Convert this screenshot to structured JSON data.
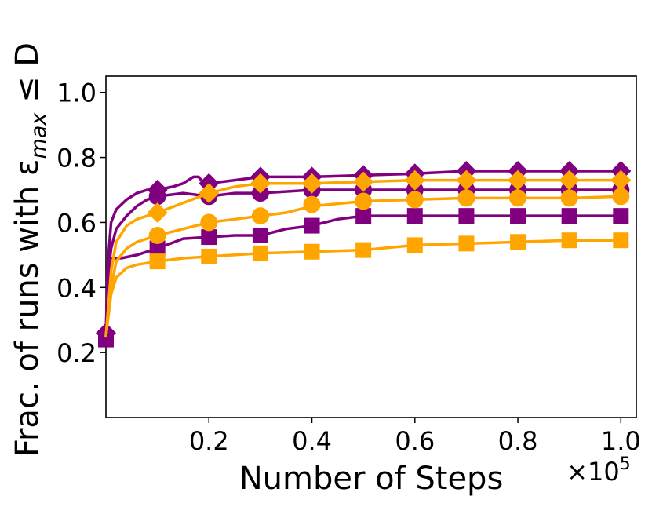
{
  "chart_data": {
    "type": "line",
    "xlabel": "Number of Steps",
    "ylabel_parts": {
      "prefix": "Frac. of runs with ε",
      "subscript": "max",
      "suffix": " ≤ D"
    },
    "x_multiplier": {
      "base": "×10",
      "exponent": "5"
    },
    "xlim": [
      0.0,
      1.03
    ],
    "ylim": [
      0.0,
      1.05
    ],
    "x_ticks": [
      {
        "value": 0.2,
        "label": "0.2"
      },
      {
        "value": 0.4,
        "label": "0.4"
      },
      {
        "value": 0.6,
        "label": "0.6"
      },
      {
        "value": 0.8,
        "label": "0.8"
      },
      {
        "value": 1.0,
        "label": "1.0"
      }
    ],
    "y_ticks": [
      {
        "value": 0.2,
        "label": "0.2"
      },
      {
        "value": 0.4,
        "label": "0.4"
      },
      {
        "value": 0.6,
        "label": "0.6"
      },
      {
        "value": 0.8,
        "label": "0.8"
      },
      {
        "value": 1.0,
        "label": "1.0"
      }
    ],
    "grid": false,
    "series": [
      {
        "color": "#800080",
        "marker": "diamond",
        "points": [
          [
            0.0,
            0.26
          ],
          [
            0.005,
            0.5
          ],
          [
            0.01,
            0.6
          ],
          [
            0.02,
            0.64
          ],
          [
            0.04,
            0.67
          ],
          [
            0.06,
            0.69
          ],
          [
            0.08,
            0.7
          ],
          [
            0.1,
            0.7
          ],
          [
            0.13,
            0.71
          ],
          [
            0.15,
            0.72
          ],
          [
            0.17,
            0.74
          ],
          [
            0.18,
            0.74
          ],
          [
            0.19,
            0.72
          ],
          [
            0.2,
            0.72
          ],
          [
            0.25,
            0.73
          ],
          [
            0.3,
            0.74
          ],
          [
            0.4,
            0.74
          ],
          [
            0.5,
            0.745
          ],
          [
            0.6,
            0.75
          ],
          [
            0.7,
            0.758
          ],
          [
            0.8,
            0.758
          ],
          [
            0.9,
            0.758
          ],
          [
            1.0,
            0.758
          ]
        ],
        "marker_points": [
          [
            0.0,
            0.26
          ],
          [
            0.1,
            0.7
          ],
          [
            0.2,
            0.72
          ],
          [
            0.3,
            0.74
          ],
          [
            0.4,
            0.74
          ],
          [
            0.5,
            0.745
          ],
          [
            0.6,
            0.75
          ],
          [
            0.7,
            0.758
          ],
          [
            0.8,
            0.758
          ],
          [
            0.9,
            0.758
          ],
          [
            1.0,
            0.758
          ]
        ]
      },
      {
        "color": "#800080",
        "marker": "circle",
        "points": [
          [
            0.0,
            0.25
          ],
          [
            0.005,
            0.45
          ],
          [
            0.01,
            0.52
          ],
          [
            0.02,
            0.58
          ],
          [
            0.04,
            0.62
          ],
          [
            0.06,
            0.65
          ],
          [
            0.08,
            0.67
          ],
          [
            0.1,
            0.68
          ],
          [
            0.15,
            0.69
          ],
          [
            0.2,
            0.68
          ],
          [
            0.25,
            0.69
          ],
          [
            0.3,
            0.69
          ],
          [
            0.4,
            0.7
          ],
          [
            0.5,
            0.7
          ],
          [
            0.6,
            0.7
          ],
          [
            0.7,
            0.7
          ],
          [
            0.8,
            0.7
          ],
          [
            0.9,
            0.7
          ],
          [
            1.0,
            0.7
          ]
        ],
        "marker_points": [
          [
            0.1,
            0.68
          ],
          [
            0.2,
            0.68
          ],
          [
            0.3,
            0.69
          ],
          [
            0.4,
            0.7
          ],
          [
            0.5,
            0.7
          ],
          [
            0.6,
            0.7
          ],
          [
            0.7,
            0.7
          ],
          [
            0.8,
            0.7
          ],
          [
            0.9,
            0.7
          ],
          [
            1.0,
            0.7
          ]
        ]
      },
      {
        "color": "#800080",
        "marker": "square",
        "points": [
          [
            0.0,
            0.24
          ],
          [
            0.003,
            0.47
          ],
          [
            0.01,
            0.49
          ],
          [
            0.03,
            0.49
          ],
          [
            0.06,
            0.5
          ],
          [
            0.08,
            0.51
          ],
          [
            0.1,
            0.52
          ],
          [
            0.15,
            0.55
          ],
          [
            0.2,
            0.555
          ],
          [
            0.25,
            0.56
          ],
          [
            0.3,
            0.56
          ],
          [
            0.35,
            0.58
          ],
          [
            0.4,
            0.59
          ],
          [
            0.45,
            0.61
          ],
          [
            0.5,
            0.62
          ],
          [
            0.6,
            0.62
          ],
          [
            0.7,
            0.62
          ],
          [
            0.8,
            0.62
          ],
          [
            0.9,
            0.62
          ],
          [
            1.0,
            0.62
          ]
        ],
        "marker_points": [
          [
            0.0,
            0.24
          ],
          [
            0.1,
            0.52
          ],
          [
            0.2,
            0.555
          ],
          [
            0.3,
            0.56
          ],
          [
            0.4,
            0.59
          ],
          [
            0.5,
            0.62
          ],
          [
            0.6,
            0.62
          ],
          [
            0.7,
            0.62
          ],
          [
            0.8,
            0.62
          ],
          [
            0.9,
            0.62
          ],
          [
            1.0,
            0.62
          ]
        ]
      },
      {
        "color": "#FFA500",
        "marker": "diamond",
        "points": [
          [
            0.0,
            0.25
          ],
          [
            0.01,
            0.45
          ],
          [
            0.02,
            0.54
          ],
          [
            0.04,
            0.59
          ],
          [
            0.06,
            0.61
          ],
          [
            0.08,
            0.62
          ],
          [
            0.1,
            0.63
          ],
          [
            0.15,
            0.66
          ],
          [
            0.2,
            0.69
          ],
          [
            0.25,
            0.71
          ],
          [
            0.3,
            0.72
          ],
          [
            0.4,
            0.72
          ],
          [
            0.5,
            0.725
          ],
          [
            0.6,
            0.73
          ],
          [
            0.7,
            0.73
          ],
          [
            0.8,
            0.73
          ],
          [
            0.9,
            0.73
          ],
          [
            1.0,
            0.73
          ]
        ],
        "marker_points": [
          [
            0.1,
            0.63
          ],
          [
            0.2,
            0.69
          ],
          [
            0.3,
            0.72
          ],
          [
            0.4,
            0.72
          ],
          [
            0.5,
            0.725
          ],
          [
            0.6,
            0.73
          ],
          [
            0.7,
            0.73
          ],
          [
            0.8,
            0.73
          ],
          [
            0.9,
            0.73
          ],
          [
            1.0,
            0.73
          ]
        ]
      },
      {
        "color": "#FFA500",
        "marker": "circle",
        "points": [
          [
            0.0,
            0.25
          ],
          [
            0.01,
            0.4
          ],
          [
            0.02,
            0.48
          ],
          [
            0.04,
            0.52
          ],
          [
            0.06,
            0.54
          ],
          [
            0.08,
            0.55
          ],
          [
            0.1,
            0.56
          ],
          [
            0.15,
            0.58
          ],
          [
            0.2,
            0.6
          ],
          [
            0.25,
            0.61
          ],
          [
            0.3,
            0.62
          ],
          [
            0.35,
            0.63
          ],
          [
            0.4,
            0.65
          ],
          [
            0.5,
            0.665
          ],
          [
            0.6,
            0.67
          ],
          [
            0.7,
            0.675
          ],
          [
            0.8,
            0.675
          ],
          [
            0.9,
            0.675
          ],
          [
            1.0,
            0.68
          ]
        ],
        "marker_points": [
          [
            0.1,
            0.56
          ],
          [
            0.2,
            0.6
          ],
          [
            0.3,
            0.62
          ],
          [
            0.4,
            0.655
          ],
          [
            0.5,
            0.665
          ],
          [
            0.6,
            0.67
          ],
          [
            0.7,
            0.675
          ],
          [
            0.8,
            0.675
          ],
          [
            0.9,
            0.675
          ],
          [
            1.0,
            0.68
          ]
        ]
      },
      {
        "color": "#FFA500",
        "marker": "square",
        "points": [
          [
            0.0,
            0.25
          ],
          [
            0.01,
            0.38
          ],
          [
            0.02,
            0.43
          ],
          [
            0.04,
            0.46
          ],
          [
            0.06,
            0.47
          ],
          [
            0.08,
            0.475
          ],
          [
            0.1,
            0.48
          ],
          [
            0.15,
            0.49
          ],
          [
            0.2,
            0.495
          ],
          [
            0.3,
            0.505
          ],
          [
            0.4,
            0.51
          ],
          [
            0.5,
            0.515
          ],
          [
            0.6,
            0.53
          ],
          [
            0.7,
            0.535
          ],
          [
            0.8,
            0.54
          ],
          [
            0.9,
            0.545
          ],
          [
            1.0,
            0.545
          ]
        ],
        "marker_points": [
          [
            0.1,
            0.48
          ],
          [
            0.2,
            0.495
          ],
          [
            0.3,
            0.505
          ],
          [
            0.4,
            0.51
          ],
          [
            0.5,
            0.515
          ],
          [
            0.6,
            0.53
          ],
          [
            0.7,
            0.535
          ],
          [
            0.8,
            0.54
          ],
          [
            0.9,
            0.545
          ],
          [
            1.0,
            0.545
          ]
        ]
      }
    ]
  }
}
